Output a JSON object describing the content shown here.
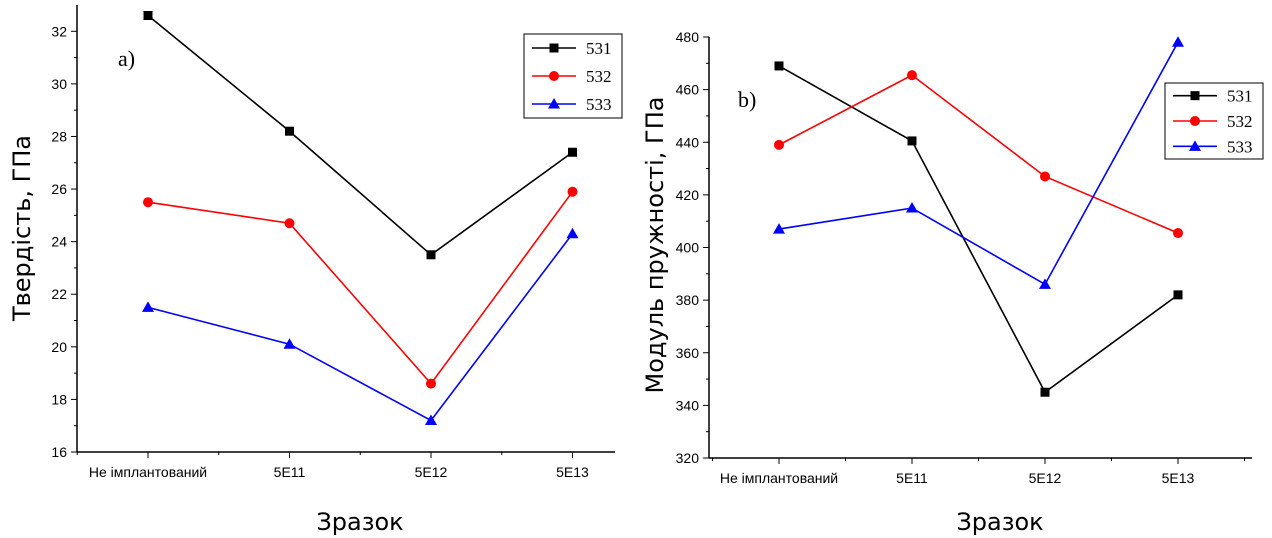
{
  "chart_data": [
    {
      "type": "line",
      "panel_label": "a)",
      "categories": [
        "Не імплантований",
        "5E11",
        "5E12",
        "5E13"
      ],
      "xlabel": "Зразок",
      "ylabel": "Твердість, ГПа",
      "ylim": [
        16,
        33
      ],
      "yticks": [
        16,
        18,
        20,
        22,
        24,
        26,
        28,
        30,
        32
      ],
      "legend_position": "top-right",
      "grid": false,
      "series": [
        {
          "name": "531",
          "color": "#000000",
          "marker": "square",
          "values": [
            32.6,
            28.2,
            23.5,
            27.4
          ]
        },
        {
          "name": "532",
          "color": "#ff0000",
          "marker": "circle",
          "values": [
            25.5,
            24.7,
            18.6,
            25.9
          ]
        },
        {
          "name": "533",
          "color": "#0000ff",
          "marker": "triangle",
          "values": [
            21.5,
            20.1,
            17.2,
            24.3
          ]
        }
      ]
    },
    {
      "type": "line",
      "panel_label": "b)",
      "categories": [
        "Не імплантований",
        "5E11",
        "5E12",
        "5E13"
      ],
      "xlabel": "Зразок",
      "ylabel": "Модуль пружності, ГПа",
      "ylim": [
        320,
        480
      ],
      "yticks": [
        320,
        340,
        360,
        380,
        400,
        420,
        440,
        460,
        480
      ],
      "legend_position": "top-right",
      "grid": false,
      "series": [
        {
          "name": "531",
          "color": "#000000",
          "marker": "square",
          "values": [
            469,
            440.5,
            345,
            382
          ]
        },
        {
          "name": "532",
          "color": "#ff0000",
          "marker": "circle",
          "values": [
            439,
            465.5,
            427,
            405.5
          ]
        },
        {
          "name": "533",
          "color": "#0000ff",
          "marker": "triangle",
          "values": [
            407,
            415,
            386,
            478
          ]
        }
      ]
    }
  ]
}
